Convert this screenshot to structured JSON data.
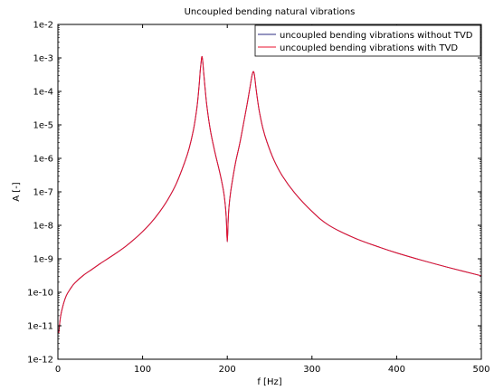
{
  "chart_data": {
    "type": "line",
    "title": "Uncoupled bending natural vibrations",
    "xlabel": "f [Hz]",
    "ylabel": "A [-]",
    "xlim": [
      0,
      500
    ],
    "ylim": [
      1e-12,
      0.01
    ],
    "yscale": "log",
    "grid": false,
    "legend_position": "top-right",
    "x_ticks": [
      0,
      100,
      200,
      300,
      400,
      500
    ],
    "x_tick_labels": [
      "0",
      "100",
      "200",
      "300",
      "400",
      "500"
    ],
    "y_ticks": [
      1e-12,
      1e-11,
      1e-10,
      1e-09,
      1e-08,
      1e-07,
      1e-06,
      1e-05,
      0.0001,
      0.001,
      0.01
    ],
    "y_tick_labels": [
      "1e-12",
      "1e-11",
      "1e-10",
      "1e-9",
      "1e-8",
      "1e-7",
      "1e-6",
      "1e-5",
      "1e-4",
      "1e-3",
      "1e-2"
    ],
    "x": [
      1,
      3,
      6,
      10,
      15,
      20,
      30,
      40,
      50,
      60,
      70,
      80,
      90,
      100,
      110,
      120,
      130,
      140,
      150,
      155,
      160,
      163,
      165,
      167,
      168,
      169,
      170,
      171,
      172,
      174,
      176,
      180,
      185,
      190,
      193,
      196,
      198,
      199,
      200,
      201,
      202,
      204,
      207,
      210,
      215,
      220,
      224,
      227,
      229,
      230,
      231,
      232,
      233,
      234,
      236,
      238,
      242,
      247,
      255,
      265,
      280,
      300,
      320,
      350,
      380,
      400,
      430,
      460,
      500
    ],
    "series": [
      {
        "name": "uncoupled bending vibrations without TVD",
        "color": "#2b2b80",
        "values": [
          6e-12,
          1.8e-11,
          4e-11,
          8e-11,
          1.3e-10,
          1.9e-10,
          3.2e-10,
          4.8e-10,
          7.2e-10,
          1.05e-09,
          1.55e-09,
          2.35e-09,
          3.8e-09,
          6.5e-09,
          1.2e-08,
          2.5e-08,
          6e-08,
          1.8e-07,
          8e-07,
          2e-06,
          7e-06,
          2e-05,
          5e-05,
          0.00018,
          0.0004,
          0.0007,
          0.0011,
          0.0008,
          0.0004,
          0.00011,
          3.5e-05,
          7e-06,
          1.7e-06,
          5e-07,
          2.3e-07,
          9e-08,
          3.2e-08,
          1.3e-08,
          3.2e-09,
          1.3e-08,
          3.5e-08,
          1e-07,
          3e-07,
          8e-07,
          3e-06,
          1.4e-05,
          5e-05,
          0.00014,
          0.00028,
          0.00036,
          0.00039,
          0.00032,
          0.0002,
          0.00012,
          5e-05,
          2.4e-05,
          8e-06,
          3e-06,
          9e-07,
          3e-07,
          9e-08,
          2.6e-08,
          1e-08,
          4.2e-09,
          2.2e-09,
          1.5e-09,
          9e-10,
          5.6e-10,
          3.1e-10
        ]
      },
      {
        "name": "uncoupled bending vibrations with TVD",
        "color": "#e8102c",
        "values": [
          6e-12,
          1.8e-11,
          4e-11,
          8e-11,
          1.3e-10,
          1.9e-10,
          3.2e-10,
          4.8e-10,
          7.2e-10,
          1.05e-09,
          1.55e-09,
          2.35e-09,
          3.8e-09,
          6.5e-09,
          1.2e-08,
          2.5e-08,
          6e-08,
          1.8e-07,
          8e-07,
          2e-06,
          7e-06,
          2e-05,
          5e-05,
          0.00018,
          0.0004,
          0.0007,
          0.0011,
          0.0008,
          0.0004,
          0.00011,
          3.5e-05,
          7e-06,
          1.7e-06,
          5e-07,
          2.3e-07,
          9e-08,
          3.2e-08,
          1.3e-08,
          3.2e-09,
          1.3e-08,
          3.5e-08,
          1e-07,
          3e-07,
          8e-07,
          3e-06,
          1.4e-05,
          5e-05,
          0.00014,
          0.00028,
          0.00036,
          0.00039,
          0.00032,
          0.0002,
          0.00012,
          5e-05,
          2.4e-05,
          8e-06,
          3e-06,
          9e-07,
          3e-07,
          9e-08,
          2.6e-08,
          1e-08,
          4.2e-09,
          2.2e-09,
          1.5e-09,
          9e-10,
          5.6e-10,
          3.1e-10
        ]
      }
    ]
  }
}
